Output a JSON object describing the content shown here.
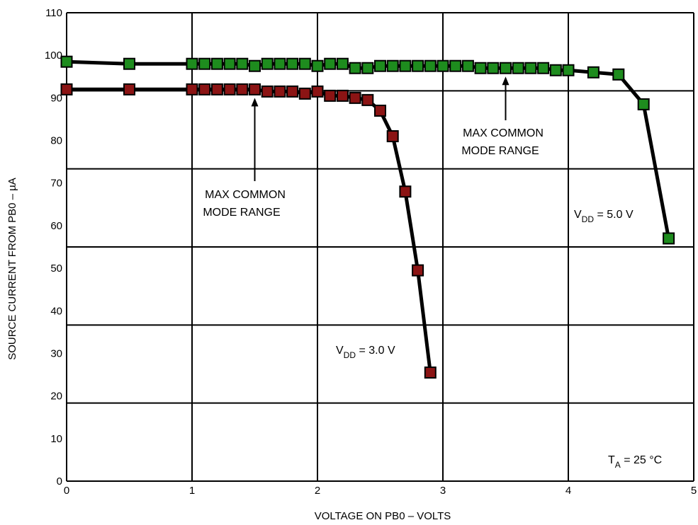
{
  "chart_data": {
    "type": "line",
    "xlabel": "VOLTAGE ON PB0 – VOLTS",
    "ylabel": "SOURCE CURRENT FROM PB0 – µA",
    "xlim": [
      0,
      5
    ],
    "ylim": [
      0,
      110
    ],
    "x_ticks": [
      "0",
      "1",
      "2",
      "3",
      "4",
      "5"
    ],
    "y_ticks": [
      "0",
      "10",
      "20",
      "30",
      "40",
      "50",
      "60",
      "70",
      "80",
      "90",
      "100",
      "110"
    ],
    "grid": true,
    "series": [
      {
        "name": "VDD = 5.0 V",
        "label_main": "V",
        "label_sub": "DD",
        "label_rest": " = 5.0 V",
        "color": "#1e8c1e",
        "x": [
          0,
          0.5,
          1.0,
          1.1,
          1.2,
          1.3,
          1.4,
          1.5,
          1.6,
          1.7,
          1.8,
          1.9,
          2.0,
          2.1,
          2.2,
          2.3,
          2.4,
          2.5,
          2.6,
          2.7,
          2.8,
          2.9,
          3.0,
          3.1,
          3.2,
          3.3,
          3.4,
          3.5,
          3.6,
          3.7,
          3.8,
          3.9,
          4.0,
          4.2,
          4.4,
          4.6,
          4.8
        ],
        "y": [
          98.5,
          98.0,
          98.0,
          98.0,
          98.0,
          98.0,
          98.0,
          97.5,
          98.0,
          98.0,
          98.0,
          98.0,
          97.5,
          98.0,
          98.0,
          97.0,
          97.0,
          97.5,
          97.5,
          97.5,
          97.5,
          97.5,
          97.5,
          97.5,
          97.5,
          97.0,
          97.0,
          97.0,
          97.0,
          97.0,
          97.0,
          96.5,
          96.5,
          96.0,
          95.5,
          88.5,
          57.0
        ]
      },
      {
        "name": "VDD = 3.0 V",
        "label_main": "V",
        "label_sub": "DD",
        "label_rest": " = 3.0 V",
        "color": "#8b1414",
        "x": [
          0,
          0.5,
          1.0,
          1.1,
          1.2,
          1.3,
          1.4,
          1.5,
          1.6,
          1.7,
          1.8,
          1.9,
          2.0,
          2.1,
          2.2,
          2.3,
          2.4,
          2.5,
          2.6,
          2.7,
          2.8,
          2.9
        ],
        "y": [
          92.0,
          92.0,
          92.0,
          92.0,
          92.0,
          92.0,
          92.0,
          92.0,
          91.5,
          91.5,
          91.5,
          91.0,
          91.5,
          90.5,
          90.5,
          90.0,
          89.5,
          87.0,
          81.0,
          68.0,
          49.5,
          25.5
        ]
      }
    ],
    "annotations": [
      {
        "line1": "MAX COMMON",
        "line2": "MODE RANGE",
        "series": "VDD = 3.0 V",
        "arrow_x": 1.5
      },
      {
        "line1": "MAX COMMON",
        "line2": "MODE RANGE",
        "series": "VDD = 5.0 V",
        "arrow_x": 3.5
      }
    ],
    "temperature_label": {
      "main": "T",
      "sub": "A",
      "rest": " = 25 °C"
    }
  }
}
